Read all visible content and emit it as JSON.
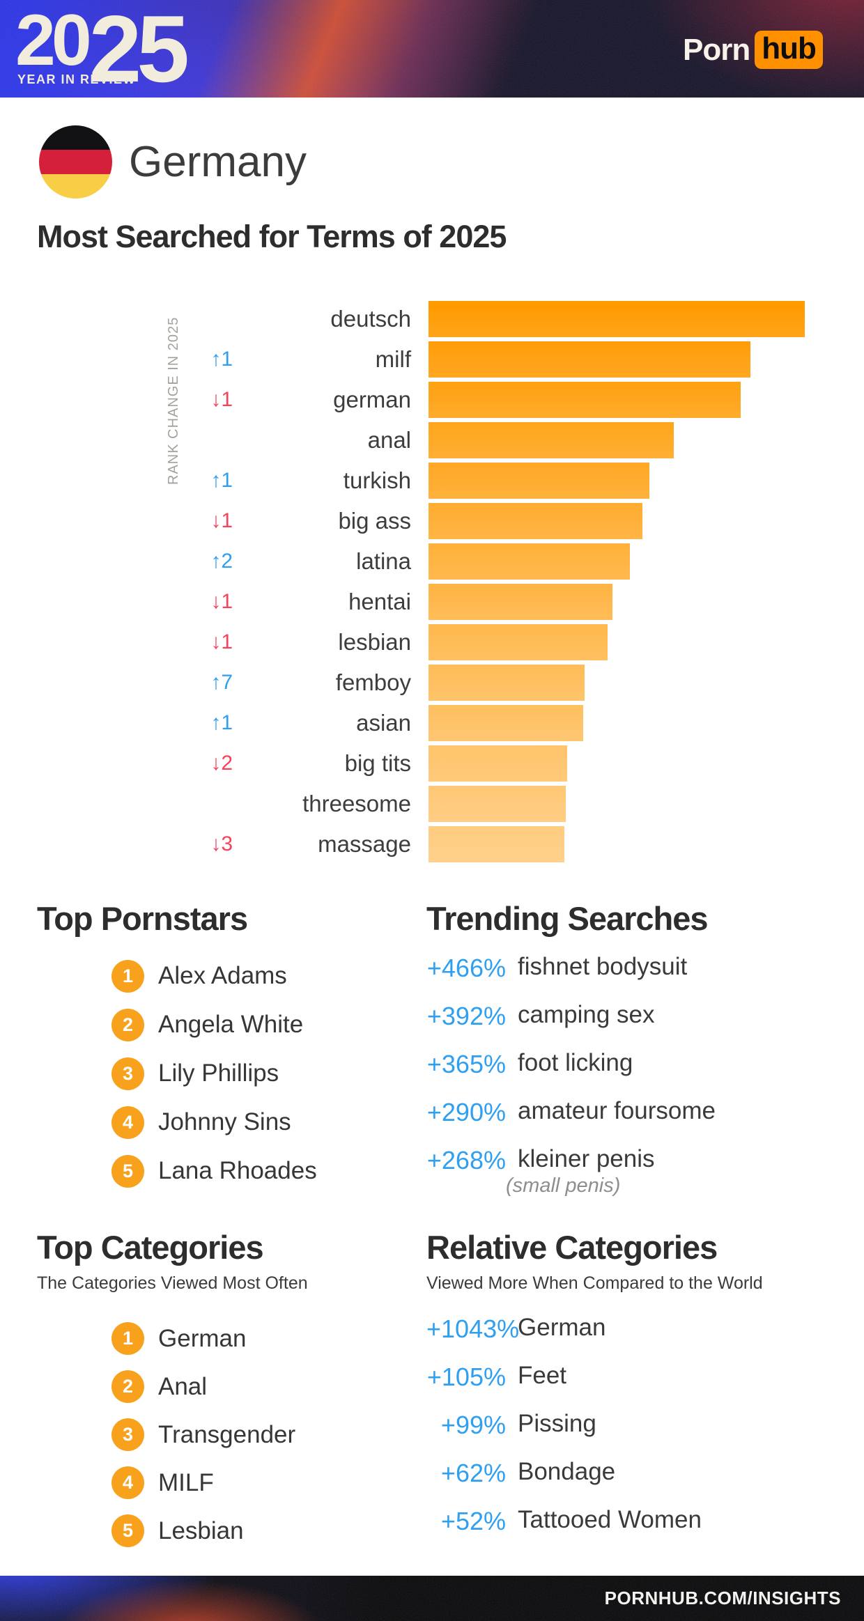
{
  "header": {
    "logo_year_part1": "20",
    "logo_year_part2": "25",
    "logo_subtitle": "YEAR IN REVIEW",
    "brand_porn": "Porn",
    "brand_hub": "hub",
    "brand_orange": "#ff9000"
  },
  "country": {
    "name": "Germany",
    "flag_colors": [
      "#121214",
      "#d5203b",
      "#f8ce46"
    ]
  },
  "page_title": "Most Searched for Terms of 2025",
  "chart_data": {
    "type": "bar",
    "orientation": "horizontal",
    "title": "Most Searched for Terms of 2025",
    "axis_label": "RANK CHANGE IN 2025",
    "legend": "bar length = relative search volume, value as % of top term",
    "max_value": 100,
    "bar_color_start": "#ff9a00",
    "bar_color_end": "#ffcc80",
    "up_color": "#2f9ff0",
    "down_color": "#f8415a",
    "rows": [
      {
        "rank": 1,
        "term": "deutsch",
        "value": 100,
        "rank_change": ""
      },
      {
        "rank": 2,
        "term": "milf",
        "value": 85.6,
        "rank_change": "↑1"
      },
      {
        "rank": 3,
        "term": "german",
        "value": 83.0,
        "rank_change": "↓1"
      },
      {
        "rank": 4,
        "term": "anal",
        "value": 65.2,
        "rank_change": ""
      },
      {
        "rank": 5,
        "term": "turkish",
        "value": 58.7,
        "rank_change": "↑1"
      },
      {
        "rank": 6,
        "term": "big ass",
        "value": 56.9,
        "rank_change": "↓1"
      },
      {
        "rank": 7,
        "term": "latina",
        "value": 53.5,
        "rank_change": "↑2"
      },
      {
        "rank": 8,
        "term": "hentai",
        "value": 48.9,
        "rank_change": "↓1"
      },
      {
        "rank": 9,
        "term": "lesbian",
        "value": 47.6,
        "rank_change": "↓1"
      },
      {
        "rank": 10,
        "term": "femboy",
        "value": 41.5,
        "rank_change": "↑7"
      },
      {
        "rank": 11,
        "term": "asian",
        "value": 41.1,
        "rank_change": "↑1"
      },
      {
        "rank": 12,
        "term": "big tits",
        "value": 36.9,
        "rank_change": "↓2"
      },
      {
        "rank": 13,
        "term": "threesome",
        "value": 36.5,
        "rank_change": ""
      },
      {
        "rank": 14,
        "term": "massage",
        "value": 36.1,
        "rank_change": "↓3"
      }
    ]
  },
  "badge_color": "#f8a11d",
  "accent_blue": "#2f9ff0",
  "top_pornstars": {
    "title": "Top Pornstars",
    "items": [
      "Alex Adams",
      "Angela White",
      "Lily Phillips",
      "Johnny Sins",
      "Lana Rhoades"
    ]
  },
  "trending_searches": {
    "title": "Trending Searches",
    "items": [
      {
        "pct": "+466%",
        "term": "fishnet bodysuit",
        "note": ""
      },
      {
        "pct": "+392%",
        "term": "camping sex",
        "note": ""
      },
      {
        "pct": "+365%",
        "term": "foot licking",
        "note": ""
      },
      {
        "pct": "+290%",
        "term": "amateur foursome",
        "note": ""
      },
      {
        "pct": "+268%",
        "term": "kleiner penis",
        "note": "(small penis)"
      }
    ]
  },
  "top_categories": {
    "title": "Top Categories",
    "subtitle": "The Categories Viewed Most Often",
    "items": [
      "German",
      "Anal",
      "Transgender",
      "MILF",
      "Lesbian"
    ]
  },
  "relative_categories": {
    "title": "Relative Categories",
    "subtitle": "Viewed More When Compared to the World",
    "items": [
      {
        "pct": "+1043%",
        "term": "German"
      },
      {
        "pct": "+105%",
        "term": "Feet"
      },
      {
        "pct": "+99%",
        "term": "Pissing"
      },
      {
        "pct": "+62%",
        "term": "Bondage"
      },
      {
        "pct": "+52%",
        "term": "Tattooed Women"
      }
    ]
  },
  "footer": {
    "site": "PORNHUB.COM/INSIGHTS"
  }
}
